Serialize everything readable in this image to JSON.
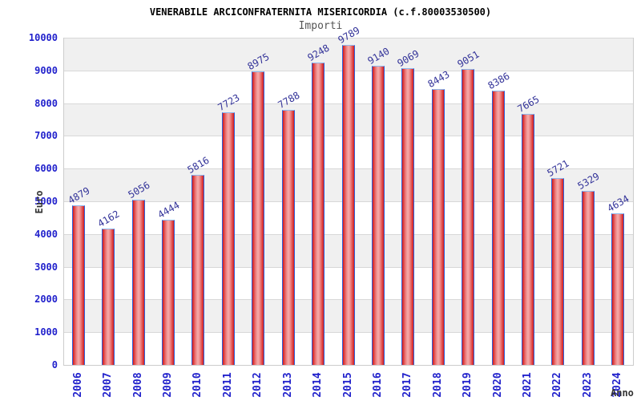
{
  "chart": {
    "title": "VENERABILE ARCICONFRATERNITA MISERICORDIA (c.f.80003530500)",
    "subtitle": "Importi",
    "ylabel": "Euro",
    "xlabel": "Anno"
  },
  "chart_data": {
    "type": "bar",
    "title": "VENERABILE ARCICONFRATERNITA MISERICORDIA (c.f.80003530500)",
    "subtitle": "Importi",
    "xlabel": "Anno",
    "ylabel": "Euro",
    "categories": [
      "2006",
      "2007",
      "2008",
      "2009",
      "2010",
      "2011",
      "2012",
      "2013",
      "2014",
      "2015",
      "2016",
      "2017",
      "2018",
      "2019",
      "2020",
      "2021",
      "2022",
      "2023",
      "2024"
    ],
    "values": [
      4879,
      4162,
      5056,
      4444,
      5816,
      7723,
      8975,
      7788,
      9248,
      9789,
      9140,
      9069,
      8443,
      9051,
      8386,
      7665,
      5721,
      5329,
      4634
    ],
    "ylim": [
      0,
      10000
    ],
    "ytick_step": 1000,
    "grid": "horizontal",
    "legend": "none",
    "colors": {
      "tick_label": "#2222cc",
      "value_label": "#333399",
      "bar_edge": "#d41a1a",
      "bar_mid": "#ee8888",
      "bar_center": "#f5abab",
      "bar_border": "#2d62dd",
      "bar_border_top": "#8fb8ec",
      "band_gray": "#f0f0f0",
      "grid_line": "#d8d8d8",
      "title_color": "#000000",
      "subtitle_color": "#555555",
      "axis_label_color": "#333333"
    }
  }
}
